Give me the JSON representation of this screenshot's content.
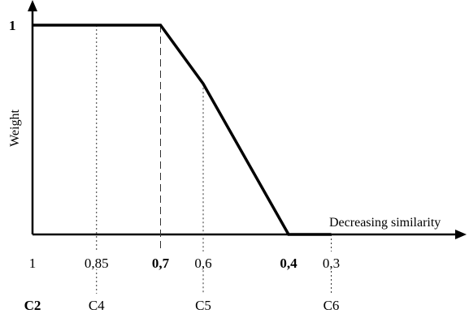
{
  "chart_data": {
    "type": "line",
    "ylabel": "Weight",
    "xlabel": "Decreasing similarity",
    "y_tick": "1",
    "x": [
      1,
      0.85,
      0.7,
      0.6,
      0.4,
      0.3
    ],
    "y": [
      1,
      1,
      1,
      0.72,
      0,
      0
    ],
    "x_tick_labels": [
      "1",
      "0,85",
      "0,7",
      "0,6",
      "0,4",
      "0,3"
    ],
    "bold_x_ticks": [
      "0,7",
      "0,4"
    ],
    "markers": [
      {
        "label": "C2",
        "x": 1,
        "bold": true
      },
      {
        "label": "C4",
        "x": 0.85,
        "bold": false
      },
      {
        "label": "C5",
        "x": 0.6,
        "bold": false
      },
      {
        "label": "C6",
        "x": 0.3,
        "bold": false
      }
    ],
    "x_axis_direction": "decreasing",
    "grid": false,
    "line_color": "#000000"
  }
}
